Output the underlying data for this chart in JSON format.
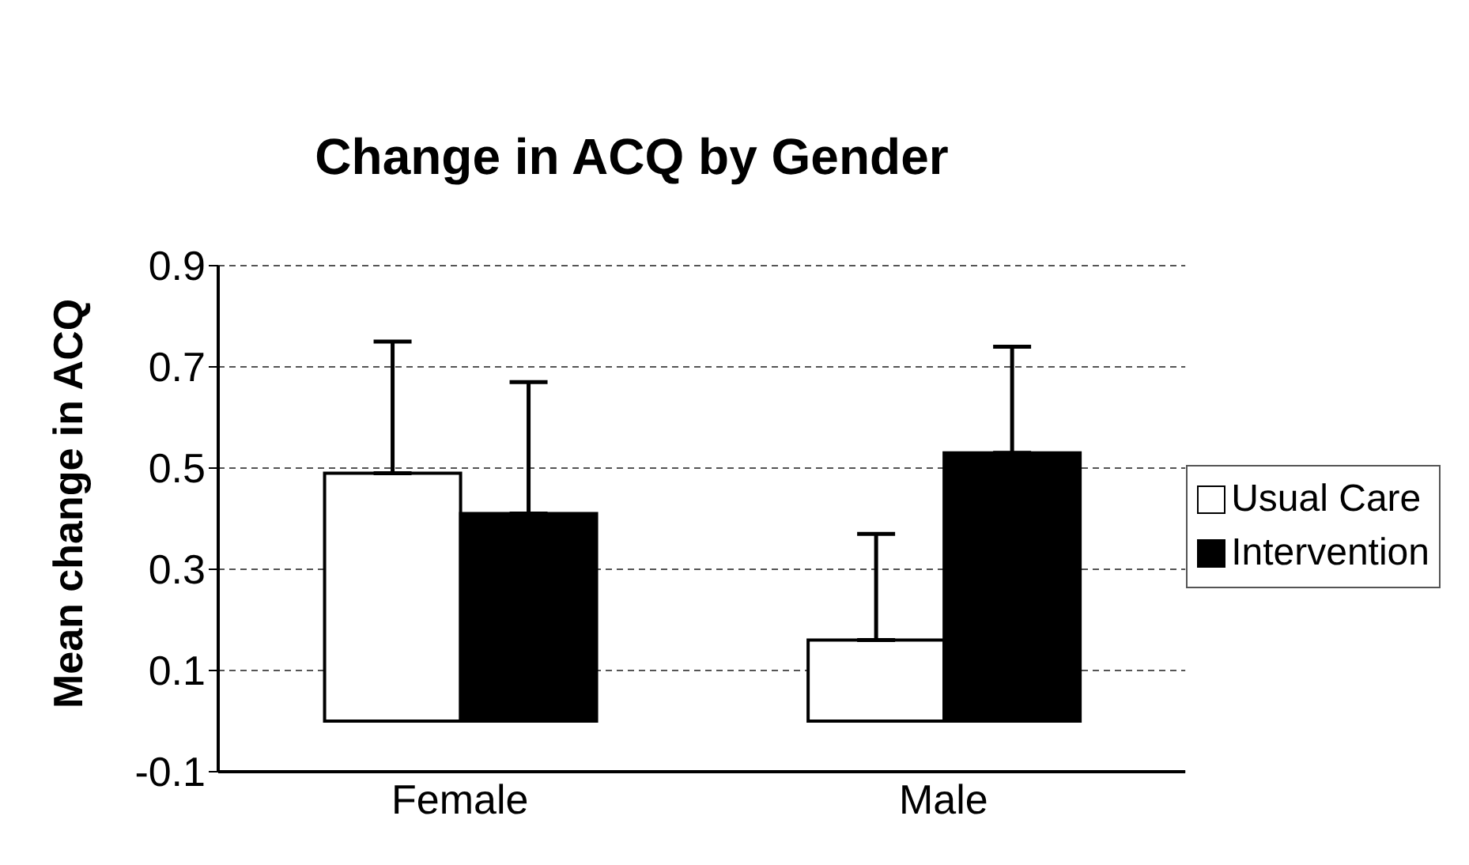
{
  "chart_data": {
    "type": "bar",
    "title": "Change in ACQ by Gender",
    "ylabel": "Mean change in ACQ",
    "categories": [
      "Female",
      "Male"
    ],
    "series": [
      {
        "name": "Usual Care",
        "color": "#ffffff",
        "values": [
          0.49,
          0.16
        ],
        "errors": [
          [
            0.49,
            0.75
          ],
          [
            0.16,
            0.37
          ]
        ]
      },
      {
        "name": "Intervention",
        "color": "#000000",
        "values": [
          0.41,
          0.53
        ],
        "errors": [
          [
            0.41,
            0.67
          ],
          [
            0.53,
            0.74
          ]
        ]
      }
    ],
    "ylim": [
      -0.1,
      0.9
    ],
    "yticks": [
      -0.1,
      0.1,
      0.3,
      0.5,
      0.7,
      0.9
    ],
    "grid": "y",
    "legend": "right"
  }
}
